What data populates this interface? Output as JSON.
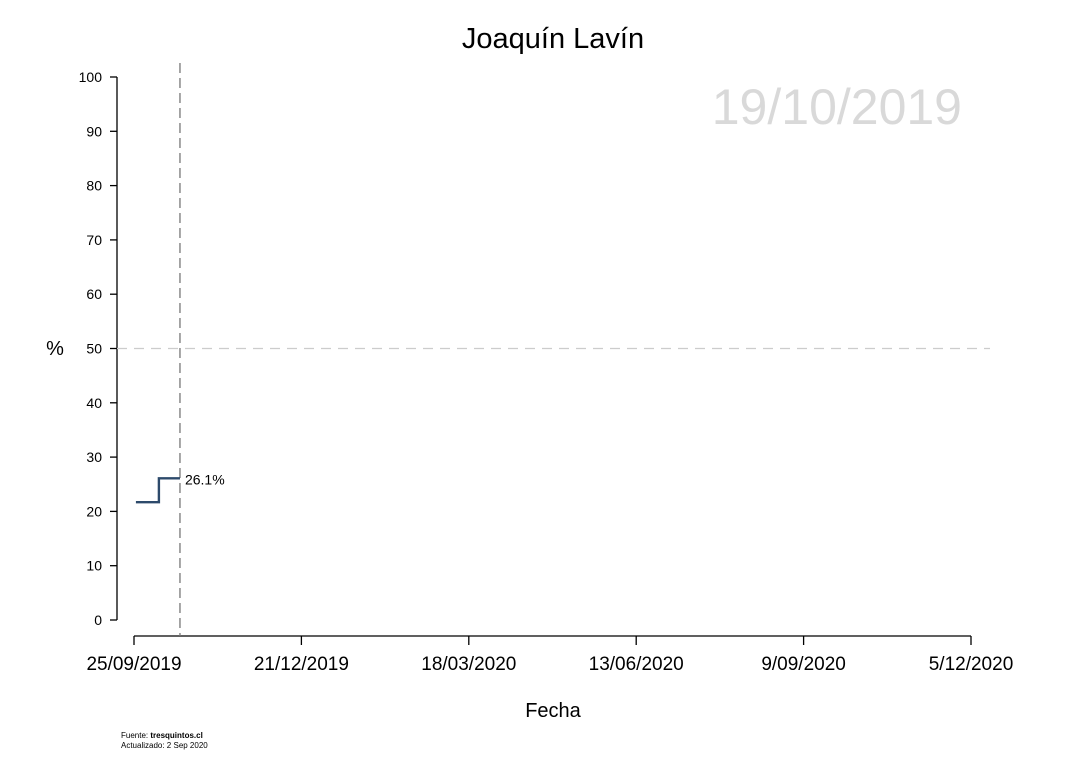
{
  "chart_data": {
    "type": "line",
    "title": "Joaquín Lavín",
    "xlabel": "Fecha",
    "ylabel": "%",
    "watermark_date": "19/10/2019",
    "x_ticks": [
      "25/09/2019",
      "21/12/2019",
      "18/03/2020",
      "13/06/2020",
      "9/09/2020",
      "5/12/2020"
    ],
    "xlim": [
      "2019-09-25",
      "2020-12-05"
    ],
    "y_ticks": [
      0,
      10,
      20,
      30,
      40,
      50,
      60,
      70,
      80,
      90,
      100
    ],
    "ylim": [
      0,
      100
    ],
    "reference_line_y": 50,
    "current_date_line": "2019-10-19",
    "series": [
      {
        "step": "post",
        "points": [
          {
            "x": "2019-09-26",
            "y": 21.7
          },
          {
            "x": "2019-10-08",
            "y": 26.1
          },
          {
            "x": "2019-10-19",
            "y": 26.1
          }
        ],
        "color": "#2d4a6b"
      }
    ],
    "end_label": "26.1%",
    "colors": {
      "line": "#2d4a6b",
      "watermark": "#d9d9d9",
      "reference": "#cccccc",
      "date_line": "#777777"
    }
  },
  "footer": {
    "source_prefix": "Fuente: ",
    "source_site": "tresquintos.cl",
    "updated": "Actualizado: 2 Sep 2020"
  }
}
